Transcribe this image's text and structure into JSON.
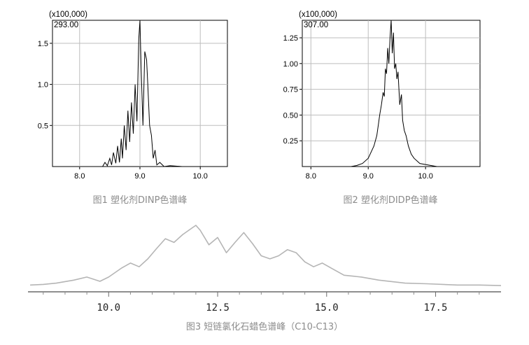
{
  "chart_data": [
    {
      "type": "line",
      "caption": "图1 塑化剂DINP色谱峰",
      "scale_label": "(x100,000)",
      "peak_label": "293.00",
      "x_ticks": [
        "8.0",
        "9.0",
        "10.0"
      ],
      "y_ticks": [
        "0.5",
        "1.0",
        "1.5"
      ],
      "xlim": [
        7.55,
        10.45
      ],
      "ylim": [
        0,
        1.78
      ],
      "x": [
        8.38,
        8.42,
        8.46,
        8.5,
        8.53,
        8.56,
        8.6,
        8.63,
        8.66,
        8.69,
        8.71,
        8.74,
        8.77,
        8.8,
        8.83,
        8.86,
        8.89,
        8.92,
        8.95,
        8.98,
        9.0,
        9.02,
        9.05,
        9.08,
        9.11,
        9.13,
        9.16,
        9.19,
        9.22,
        9.25,
        9.28,
        9.33,
        9.4,
        9.5,
        9.7,
        10.0,
        10.2
      ],
      "y": [
        0,
        0.05,
        0.01,
        0.1,
        0.02,
        0.17,
        0.04,
        0.25,
        0.05,
        0.34,
        0.1,
        0.5,
        0.2,
        0.68,
        0.3,
        0.78,
        0.4,
        1.0,
        0.55,
        1.55,
        1.78,
        1.2,
        0.5,
        1.4,
        1.3,
        1.0,
        0.5,
        0.38,
        0.1,
        0.2,
        0.02,
        0.05,
        0.0,
        0.01,
        0.0,
        0.0,
        0.0
      ],
      "grid": true
    },
    {
      "type": "line",
      "caption": "图2 塑化剂DIDP色谱峰",
      "scale_label": "(x100,000)",
      "peak_label": "307.00",
      "x_ticks": [
        "8.0",
        "9.0",
        "10.0"
      ],
      "y_ticks": [
        "0.25",
        "0.50",
        "0.75",
        "1.00",
        "1.25"
      ],
      "xlim": [
        7.85,
        10.95
      ],
      "ylim": [
        0,
        1.42
      ],
      "x": [
        8.7,
        8.8,
        8.9,
        9.0,
        9.05,
        9.1,
        9.15,
        9.18,
        9.2,
        9.23,
        9.26,
        9.28,
        9.3,
        9.32,
        9.34,
        9.36,
        9.38,
        9.4,
        9.42,
        9.44,
        9.46,
        9.48,
        9.5,
        9.52,
        9.55,
        9.58,
        9.6,
        9.63,
        9.66,
        9.7,
        9.75,
        9.8,
        9.9,
        10.0,
        10.2,
        10.3
      ],
      "y": [
        0.0,
        0.01,
        0.03,
        0.08,
        0.14,
        0.2,
        0.3,
        0.42,
        0.5,
        0.6,
        0.72,
        0.68,
        0.95,
        0.9,
        1.15,
        1.0,
        1.25,
        1.42,
        1.1,
        1.3,
        0.95,
        1.0,
        0.85,
        0.92,
        0.6,
        0.7,
        0.45,
        0.35,
        0.3,
        0.2,
        0.12,
        0.08,
        0.03,
        0.02,
        0.0,
        0.0
      ],
      "grid": true
    },
    {
      "type": "line",
      "caption": "图3 短链氯化石蜡色谱峰（C10-C13）",
      "x_ticks": [
        "10.0",
        "12.5",
        "15.0",
        "17.5"
      ],
      "xlim": [
        8.15,
        19.0
      ],
      "ylim": [
        0,
        1
      ],
      "x": [
        8.2,
        8.5,
        8.8,
        9.2,
        9.5,
        9.8,
        10.0,
        10.3,
        10.5,
        10.7,
        10.9,
        11.1,
        11.3,
        11.5,
        11.7,
        11.9,
        12.0,
        12.1,
        12.3,
        12.5,
        12.7,
        12.9,
        13.1,
        13.3,
        13.5,
        13.7,
        13.9,
        14.1,
        14.3,
        14.5,
        14.7,
        14.9,
        15.1,
        15.4,
        15.8,
        16.2,
        16.8,
        17.3,
        18.0,
        18.5,
        19.0
      ],
      "y": [
        0.02,
        0.03,
        0.05,
        0.1,
        0.15,
        0.08,
        0.15,
        0.3,
        0.38,
        0.32,
        0.45,
        0.62,
        0.78,
        0.72,
        0.85,
        0.95,
        1.0,
        0.92,
        0.68,
        0.8,
        0.55,
        0.72,
        0.88,
        0.7,
        0.5,
        0.45,
        0.5,
        0.6,
        0.55,
        0.4,
        0.32,
        0.38,
        0.3,
        0.18,
        0.15,
        0.1,
        0.05,
        0.04,
        0.02,
        0.02,
        0.01
      ],
      "grid": false
    }
  ]
}
